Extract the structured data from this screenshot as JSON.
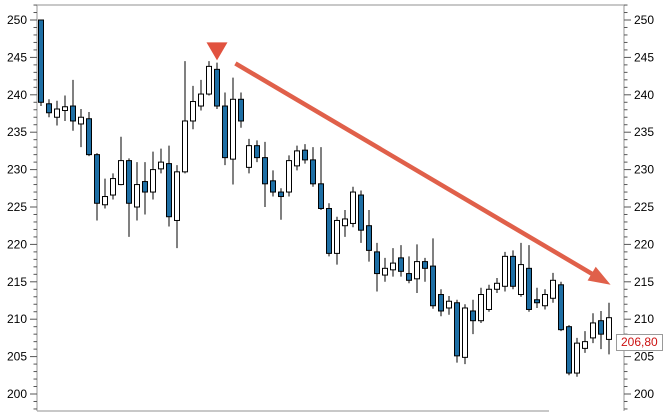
{
  "chart_data": {
    "type": "candlestick",
    "title": "",
    "xlabel": "",
    "ylabel": "",
    "y_axis": {
      "min": 200,
      "max": 250,
      "major_step": 5,
      "minor_step": 1,
      "tick_labels": [
        "250",
        "245",
        "240",
        "235",
        "230",
        "225",
        "220",
        "215",
        "210",
        "205",
        "200"
      ],
      "sides": [
        "left",
        "right"
      ],
      "grid": "off"
    },
    "x_axis": {
      "tick_labels": [],
      "note": "no visible x-axis labels"
    },
    "candles_format": [
      "open",
      "high",
      "low",
      "close"
    ],
    "candles": [
      [
        250.0,
        250.0,
        238.5,
        239.0
      ],
      [
        238.8,
        239.4,
        237.0,
        237.6
      ],
      [
        237.0,
        239.2,
        235.9,
        238.1
      ],
      [
        237.9,
        239.9,
        236.5,
        238.4
      ],
      [
        238.5,
        242.0,
        235.2,
        236.5
      ],
      [
        236.1,
        238.1,
        233.0,
        237.0
      ],
      [
        236.8,
        237.7,
        231.8,
        232.0
      ],
      [
        232.0,
        232.2,
        223.2,
        225.5
      ],
      [
        225.3,
        228.8,
        224.8,
        226.4
      ],
      [
        226.6,
        229.5,
        226.0,
        228.8
      ],
      [
        228.0,
        234.4,
        227.9,
        231.2
      ],
      [
        231.2,
        231.5,
        221.0,
        225.5
      ],
      [
        225.0,
        231.0,
        223.2,
        228.0
      ],
      [
        228.4,
        231.0,
        224.0,
        227.0
      ],
      [
        227.0,
        232.4,
        226.0,
        230.0
      ],
      [
        230.1,
        232.8,
        229.5,
        231.0
      ],
      [
        230.8,
        233.2,
        222.4,
        223.7
      ],
      [
        223.2,
        230.6,
        219.5,
        229.7
      ],
      [
        229.7,
        244.5,
        229.5,
        236.5
      ],
      [
        236.5,
        241.2,
        235.4,
        239.1
      ],
      [
        238.5,
        242.0,
        237.9,
        240.1
      ],
      [
        240.1,
        244.5,
        239.9,
        243.8
      ],
      [
        243.4,
        244.3,
        238.1,
        238.5
      ],
      [
        238.5,
        240.3,
        230.6,
        231.6
      ],
      [
        231.4,
        242.3,
        228.0,
        239.4
      ],
      [
        239.4,
        240.3,
        235.6,
        236.5
      ],
      [
        230.3,
        234.1,
        229.5,
        233.2
      ],
      [
        233.2,
        233.9,
        231.0,
        231.6
      ],
      [
        231.6,
        233.7,
        225.0,
        228.1
      ],
      [
        228.5,
        229.9,
        226.4,
        227.0
      ],
      [
        227.0,
        227.5,
        223.3,
        226.4
      ],
      [
        227.0,
        231.9,
        226.4,
        231.2
      ],
      [
        230.5,
        233.2,
        229.9,
        232.5
      ],
      [
        232.6,
        233.4,
        230.8,
        231.3
      ],
      [
        231.3,
        233.0,
        227.7,
        228.1
      ],
      [
        228.1,
        233.0,
        224.6,
        224.8
      ],
      [
        224.8,
        225.5,
        218.4,
        218.8
      ],
      [
        218.8,
        223.7,
        217.3,
        223.2
      ],
      [
        222.5,
        224.6,
        221.0,
        223.4
      ],
      [
        222.8,
        227.7,
        222.3,
        227.0
      ],
      [
        226.6,
        227.2,
        220.2,
        221.9
      ],
      [
        222.5,
        224.6,
        217.7,
        219.2
      ],
      [
        219.0,
        220.2,
        213.7,
        216.1
      ],
      [
        215.9,
        218.2,
        215.0,
        216.8
      ],
      [
        216.6,
        219.5,
        215.7,
        217.5
      ],
      [
        218.2,
        219.9,
        215.7,
        216.4
      ],
      [
        216.1,
        218.4,
        214.8,
        215.2
      ],
      [
        215.4,
        220.0,
        213.5,
        217.7
      ],
      [
        217.7,
        218.2,
        215.0,
        216.8
      ],
      [
        217.1,
        220.8,
        211.4,
        211.8
      ],
      [
        213.3,
        214.0,
        210.4,
        211.1
      ],
      [
        211.5,
        213.1,
        210.6,
        212.4
      ],
      [
        212.2,
        212.6,
        204.2,
        205.1
      ],
      [
        204.9,
        212.0,
        204.0,
        211.5
      ],
      [
        211.1,
        212.6,
        208.0,
        209.8
      ],
      [
        209.8,
        214.2,
        209.5,
        213.3
      ],
      [
        211.3,
        214.6,
        211.0,
        214.0
      ],
      [
        214.0,
        215.5,
        213.5,
        214.8
      ],
      [
        214.4,
        219.0,
        213.7,
        218.4
      ],
      [
        218.4,
        219.2,
        214.0,
        214.4
      ],
      [
        213.3,
        220.2,
        213.0,
        217.3
      ],
      [
        216.8,
        219.9,
        211.0,
        211.3
      ],
      [
        212.6,
        214.2,
        211.5,
        212.2
      ],
      [
        211.8,
        214.0,
        211.3,
        213.3
      ],
      [
        212.8,
        216.2,
        212.2,
        215.2
      ],
      [
        214.6,
        215.0,
        208.4,
        208.6
      ],
      [
        209.0,
        209.2,
        202.5,
        202.8
      ],
      [
        202.8,
        207.5,
        202.3,
        206.8
      ],
      [
        206.1,
        208.4,
        205.5,
        207.0
      ],
      [
        207.5,
        210.8,
        206.8,
        209.5
      ],
      [
        209.8,
        211.1,
        206.0,
        208.0
      ],
      [
        207.3,
        212.2,
        205.3,
        210.2
      ]
    ],
    "price_label": {
      "text": "206,80",
      "value": 206.8,
      "text_color": "#cc1111",
      "side": "right"
    },
    "annotations": {
      "triangle_marker": {
        "shape": "down-triangle",
        "candle_index": 22,
        "tip_price": 244.4,
        "width": 21,
        "height": 18,
        "color": "#e1523f"
      },
      "trend_arrow": {
        "direction": "down-right",
        "from_index": 24.3,
        "from_price": 244.2,
        "to_index": 71.2,
        "to_price": 214.6,
        "color": "#e0604a",
        "thickness": 4.5
      }
    },
    "colors": {
      "up_fill": "#ffffff",
      "down_fill": "#1e6fa5",
      "body_outline": "#000000",
      "wick": "#000000",
      "border": "#a8a8a8",
      "tick": "#555555",
      "label": "#000000"
    }
  }
}
